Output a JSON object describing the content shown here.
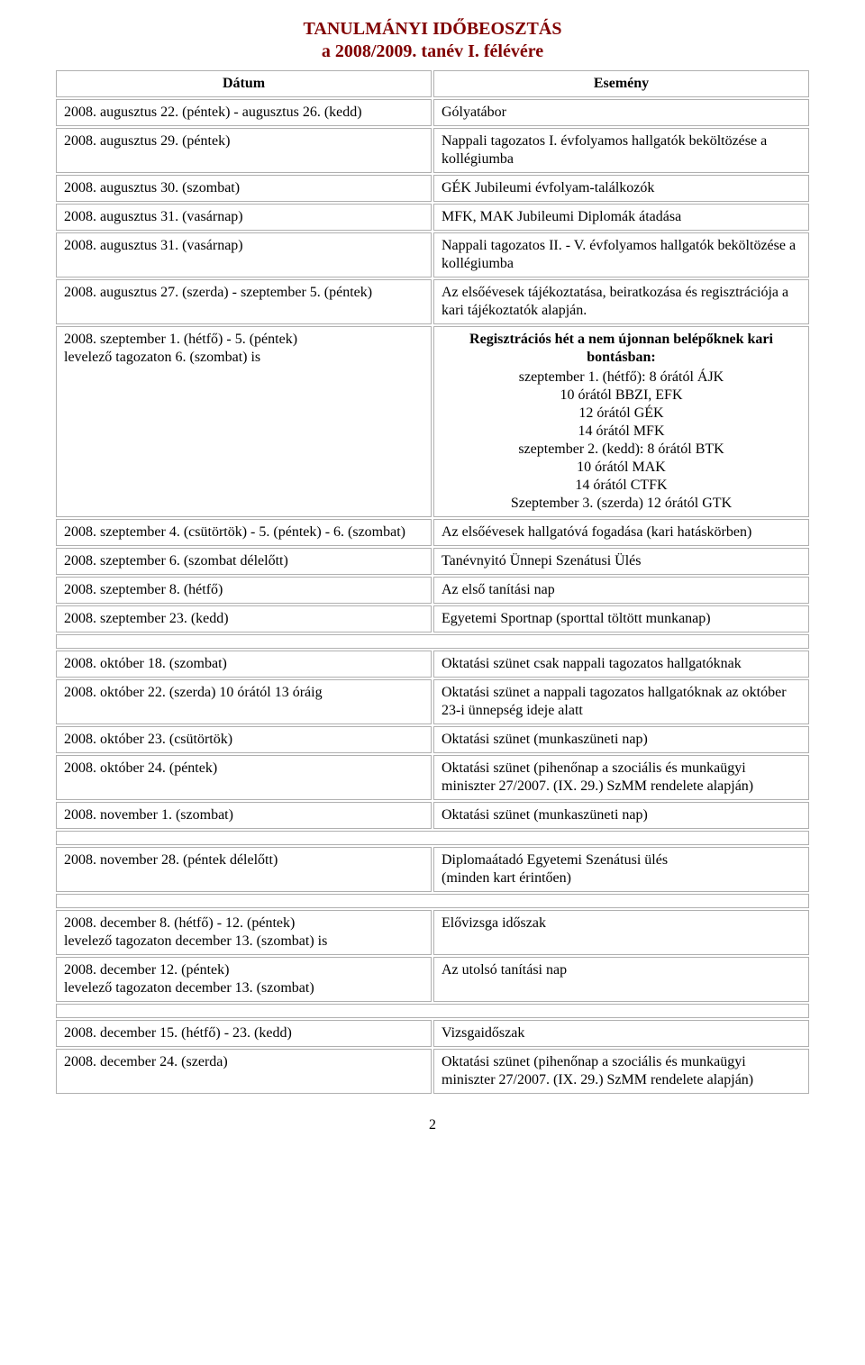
{
  "title_line1": "TANULMÁNYI IDŐBEOSZTÁS",
  "title_line2": "a 2008/2009. tanév I. félévére",
  "page_number": "2",
  "headers": {
    "date": "Dátum",
    "event": "Esemény"
  },
  "rows": [
    {
      "type": "row",
      "date_lines": [
        "2008. augusztus 22. (péntek) - augusztus 26. (kedd)"
      ],
      "event_lines": [
        "Gólyatábor"
      ]
    },
    {
      "type": "row",
      "date_lines": [
        "2008. augusztus 29. (péntek)"
      ],
      "event_lines": [
        "Nappali tagozatos I. évfolyamos hallgatók beköltözése a kollégiumba"
      ]
    },
    {
      "type": "row",
      "date_lines": [
        "2008. augusztus 30. (szombat)"
      ],
      "event_lines": [
        "GÉK Jubileumi évfolyam-találkozók"
      ]
    },
    {
      "type": "row",
      "date_lines": [
        "2008. augusztus 31. (vasárnap)"
      ],
      "event_lines": [
        "MFK, MAK Jubileumi Diplomák átadása"
      ]
    },
    {
      "type": "row",
      "date_lines": [
        "2008. augusztus 31. (vasárnap)"
      ],
      "event_lines": [
        "Nappali tagozatos II. - V. évfolyamos hallgatók beköltözése a kollégiumba"
      ]
    },
    {
      "type": "row",
      "date_lines": [
        "2008. augusztus 27. (szerda) - szeptember 5. (péntek)"
      ],
      "event_lines": [
        "Az elsőévesek tájékoztatása, beiratkozása és regisztrációja a kari tájékoztatók alapján."
      ]
    },
    {
      "type": "row",
      "date_lines": [
        "2008. szeptember 1. (hétfő) - 5. (péntek)",
        "levelező tagozaton 6. (szombat) is"
      ],
      "event_heading": "Regisztrációs hét a nem újonnan belépőknek kari bontásban:",
      "event_sub_lines": [
        "szeptember 1. (hétfő): 8 órától ÁJK",
        "10 órától BBZI, EFK",
        "12 órától GÉK",
        "14 órától MFK",
        "szeptember 2. (kedd): 8 órától BTK",
        "10 órától MAK",
        "14 órától CTFK",
        "Szeptember 3. (szerda) 12 órától GTK"
      ]
    },
    {
      "type": "row",
      "date_lines": [
        "2008. szeptember 4. (csütörtök) - 5. (péntek) - 6. (szombat)"
      ],
      "event_lines": [
        "Az elsőévesek hallgatóvá fogadása (kari hatáskörben)"
      ]
    },
    {
      "type": "row",
      "date_lines": [
        "2008. szeptember 6. (szombat délelőtt)"
      ],
      "event_lines": [
        "Tanévnyitó Ünnepi Szenátusi Ülés"
      ]
    },
    {
      "type": "row",
      "date_lines": [
        "2008. szeptember 8. (hétfő)"
      ],
      "event_lines": [
        "Az első tanítási nap"
      ]
    },
    {
      "type": "row",
      "date_lines": [
        "2008. szeptember 23. (kedd)"
      ],
      "event_lines": [
        "Egyetemi Sportnap (sporttal töltött munkanap)"
      ]
    },
    {
      "type": "spacer"
    },
    {
      "type": "row",
      "date_lines": [
        "2008. október 18. (szombat)"
      ],
      "event_lines": [
        "Oktatási szünet csak nappali tagozatos hallgatóknak"
      ]
    },
    {
      "type": "row",
      "date_lines": [
        "2008. október 22. (szerda) 10 órától 13 óráig"
      ],
      "event_lines": [
        "Oktatási szünet a nappali tagozatos hallgatóknak az október 23-i ünnepség ideje alatt"
      ]
    },
    {
      "type": "row",
      "date_lines": [
        "2008. október 23. (csütörtök)"
      ],
      "event_lines": [
        "Oktatási szünet (munkaszüneti nap)"
      ]
    },
    {
      "type": "row",
      "date_lines": [
        "2008. október 24. (péntek)"
      ],
      "event_lines": [
        "Oktatási szünet (pihenőnap a szociális és munkaügyi miniszter 27/2007. (IX. 29.) SzMM rendelete alapján)"
      ]
    },
    {
      "type": "row",
      "date_lines": [
        "2008. november 1. (szombat)"
      ],
      "event_lines": [
        "Oktatási szünet (munkaszüneti nap)"
      ]
    },
    {
      "type": "spacer"
    },
    {
      "type": "row",
      "date_lines": [
        "2008. november 28. (péntek délelőtt)"
      ],
      "event_lines": [
        "Diplomaátadó Egyetemi Szenátusi ülés",
        "(minden kart érintően)"
      ]
    },
    {
      "type": "spacer"
    },
    {
      "type": "row",
      "date_lines": [
        "2008. december 8. (hétfő) - 12. (péntek)",
        "levelező tagozaton december 13. (szombat) is"
      ],
      "event_lines": [
        "Elővizsga időszak"
      ]
    },
    {
      "type": "row",
      "date_lines": [
        "2008. december 12. (péntek)",
        "levelező tagozaton december 13. (szombat)"
      ],
      "event_lines": [
        "Az utolsó tanítási nap"
      ]
    },
    {
      "type": "spacer"
    },
    {
      "type": "row",
      "date_lines": [
        "2008. december 15. (hétfő) - 23. (kedd)"
      ],
      "event_lines": [
        "Vizsgaidőszak"
      ]
    },
    {
      "type": "row",
      "date_lines": [
        "2008. december 24. (szerda)"
      ],
      "event_lines": [
        "Oktatási szünet (pihenőnap a szociális és munkaügyi miniszter 27/2007. (IX. 29.) SzMM rendelete alapján)"
      ]
    }
  ]
}
